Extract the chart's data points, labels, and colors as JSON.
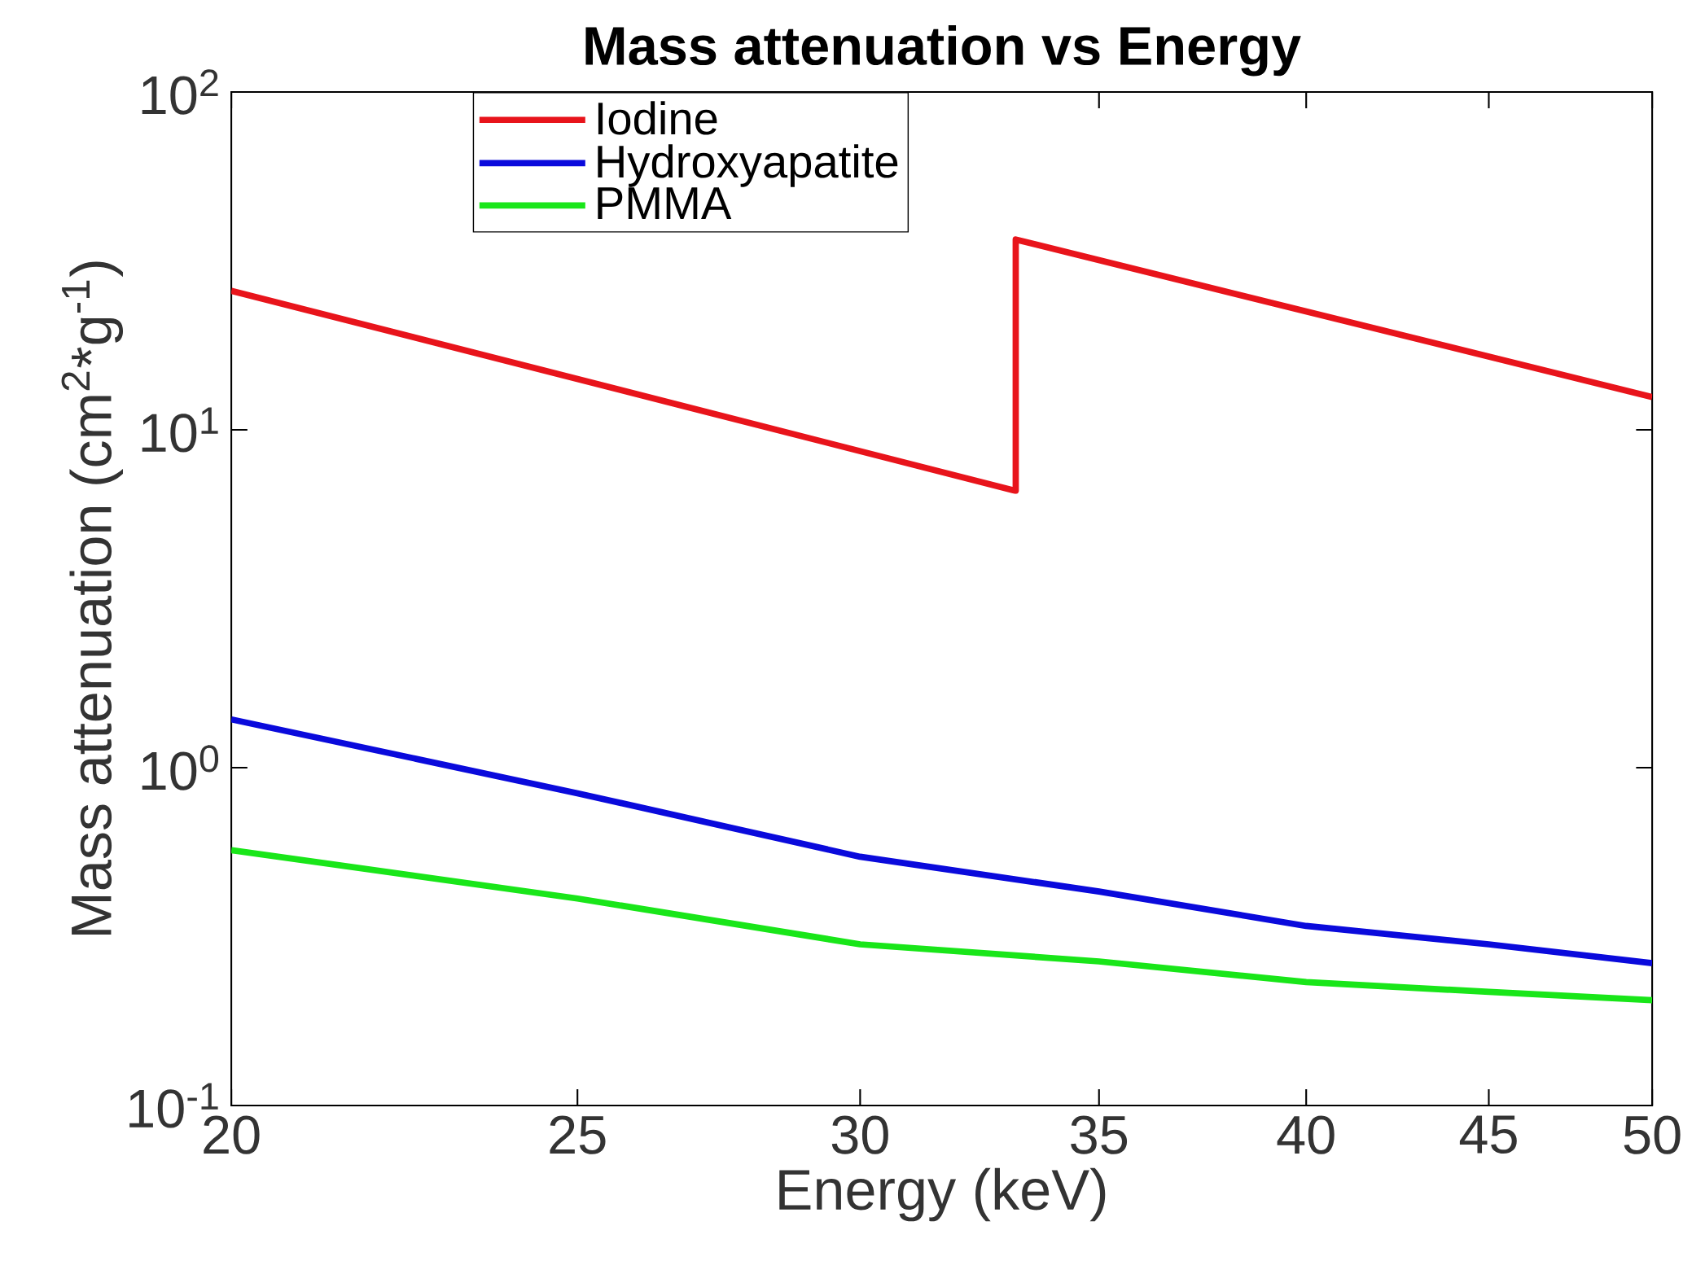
{
  "chart_data": {
    "type": "line",
    "title": "Mass attenuation vs Energy",
    "xlabel": "Energy (keV)",
    "ylabel": "Mass attenuation (cm$^{2}$*g$^{-1}$)",
    "log": "xy",
    "xlim": [
      20,
      50
    ],
    "ylim": [
      0.1,
      100
    ],
    "xticks": [
      20,
      25,
      30,
      35,
      40,
      45,
      50
    ],
    "yticks": [
      {
        "value": 0.1,
        "label": "10$^{-1}$"
      },
      {
        "value": 1,
        "label": "10$^{0}$"
      },
      {
        "value": 10,
        "label": "10$^{1}$"
      },
      {
        "value": 100,
        "label": "10$^{2}$"
      }
    ],
    "legend": "top left",
    "grid": false,
    "marker": "none",
    "series": [
      {
        "name": "Iodine",
        "color": "#e8141b",
        "x": [
          20,
          33.17,
          33.17,
          50
        ],
        "values": [
          25.8,
          6.6,
          36.6,
          12.5
        ]
      },
      {
        "name": "Hydroxyapatite",
        "color": "#0a0adc",
        "x": [
          20,
          25,
          30,
          35,
          40,
          45,
          50
        ],
        "values": [
          1.39,
          0.84,
          0.545,
          0.43,
          0.34,
          0.3,
          0.264
        ]
      },
      {
        "name": "PMMA",
        "color": "#19e619",
        "x": [
          20,
          25,
          30,
          35,
          40,
          45,
          50
        ],
        "values": [
          0.57,
          0.41,
          0.3,
          0.267,
          0.232,
          0.217,
          0.205
        ]
      }
    ]
  }
}
